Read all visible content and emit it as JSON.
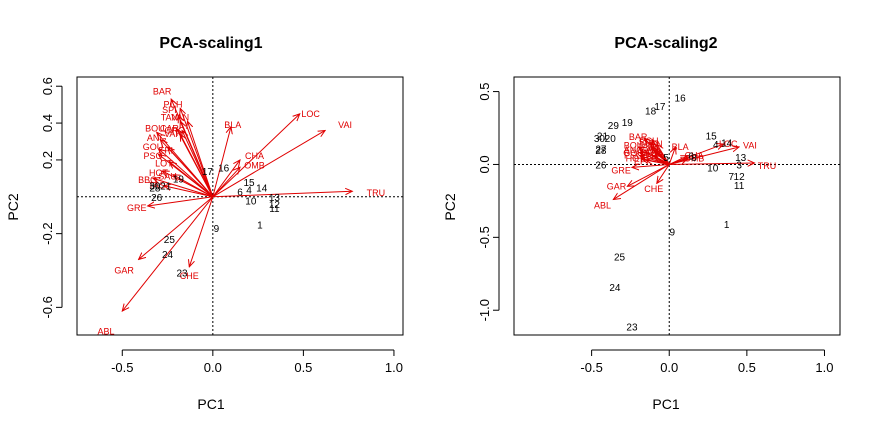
{
  "colors": {
    "arrow": "#e00000",
    "site": "#000000",
    "background": "#ffffff"
  },
  "chart_data": [
    {
      "type": "scatter",
      "title": "PCA-scaling1",
      "xlabel": "PC1",
      "ylabel": "PC2",
      "xlim": [
        -0.75,
        1.05
      ],
      "ylim": [
        -0.75,
        0.65
      ],
      "xticks": [
        -0.5,
        0.0,
        0.5,
        1.0
      ],
      "xtick_labels": [
        "-0.5",
        "0.0",
        "0.5",
        "1.0"
      ],
      "yticks": [
        -0.6,
        -0.2,
        0.2,
        0.4,
        0.6
      ],
      "ytick_labels": [
        "-0.6",
        "-0.2",
        "0.2",
        "0.4",
        "0.6"
      ],
      "reference_lines": {
        "x": 0,
        "y": 0
      },
      "sites": [
        {
          "label": "1",
          "x": 0.26,
          "y": -0.15
        },
        {
          "label": "9",
          "x": 0.02,
          "y": -0.17
        },
        {
          "label": "10",
          "x": 0.21,
          "y": -0.02
        },
        {
          "label": "11",
          "x": 0.34,
          "y": -0.06
        },
        {
          "label": "12",
          "x": 0.34,
          "y": -0.04
        },
        {
          "label": "13",
          "x": 0.34,
          "y": 0.0
        },
        {
          "label": "14",
          "x": 0.27,
          "y": 0.05
        },
        {
          "label": "15",
          "x": 0.2,
          "y": 0.08
        },
        {
          "label": "16",
          "x": 0.06,
          "y": 0.16
        },
        {
          "label": "17",
          "x": -0.03,
          "y": 0.14
        },
        {
          "label": "6",
          "x": 0.15,
          "y": 0.03
        },
        {
          "label": "4",
          "x": 0.2,
          "y": 0.04
        },
        {
          "label": "23",
          "x": -0.17,
          "y": -0.41
        },
        {
          "label": "24",
          "x": -0.25,
          "y": -0.31
        },
        {
          "label": "25",
          "x": -0.24,
          "y": -0.23
        },
        {
          "label": "26",
          "x": -0.31,
          "y": 0.0
        },
        {
          "label": "28",
          "x": -0.32,
          "y": 0.05
        },
        {
          "label": "30",
          "x": -0.32,
          "y": 0.06
        },
        {
          "label": "21",
          "x": -0.26,
          "y": 0.06
        },
        {
          "label": "19",
          "x": -0.19,
          "y": 0.1
        }
      ],
      "variables": [
        {
          "label": "ABL",
          "x": -0.5,
          "y": -0.62,
          "lx": -0.59,
          "ly": -0.73
        },
        {
          "label": "GAR",
          "x": -0.41,
          "y": -0.34,
          "lx": -0.49,
          "ly": -0.4
        },
        {
          "label": "CHE",
          "x": -0.13,
          "y": -0.38,
          "lx": -0.13,
          "ly": -0.43
        },
        {
          "label": "GRE",
          "x": -0.36,
          "y": -0.05,
          "lx": -0.42,
          "ly": -0.06
        },
        {
          "label": "TRU",
          "x": 0.77,
          "y": 0.03,
          "lx": 0.9,
          "ly": 0.02
        },
        {
          "label": "VAI",
          "x": 0.62,
          "y": 0.36,
          "lx": 0.73,
          "ly": 0.39
        },
        {
          "label": "LOC",
          "x": 0.48,
          "y": 0.45,
          "lx": 0.54,
          "ly": 0.45
        },
        {
          "label": "CHA",
          "x": 0.15,
          "y": 0.2,
          "lx": 0.23,
          "ly": 0.22
        },
        {
          "label": "OMB",
          "x": 0.15,
          "y": 0.16,
          "lx": 0.23,
          "ly": 0.17
        },
        {
          "label": "BLA",
          "x": 0.1,
          "y": 0.38,
          "lx": 0.11,
          "ly": 0.39
        },
        {
          "label": "BAR",
          "x": -0.23,
          "y": 0.53,
          "lx": -0.28,
          "ly": 0.57
        },
        {
          "label": "PCH",
          "x": -0.18,
          "y": 0.48,
          "lx": -0.22,
          "ly": 0.5
        },
        {
          "label": "SPI",
          "x": -0.19,
          "y": 0.44,
          "lx": -0.24,
          "ly": 0.47
        },
        {
          "label": "TAN",
          "x": -0.18,
          "y": 0.41,
          "lx": -0.24,
          "ly": 0.43
        },
        {
          "label": "VAN",
          "x": -0.14,
          "y": 0.41,
          "lx": -0.18,
          "ly": 0.43
        },
        {
          "label": "BOU",
          "x": -0.31,
          "y": 0.35,
          "lx": -0.32,
          "ly": 0.37
        },
        {
          "label": "ANG",
          "x": -0.29,
          "y": 0.31,
          "lx": -0.31,
          "ly": 0.32
        },
        {
          "label": "GOU",
          "x": -0.3,
          "y": 0.26,
          "lx": -0.33,
          "ly": 0.27
        },
        {
          "label": "PSO",
          "x": -0.3,
          "y": 0.23,
          "lx": -0.33,
          "ly": 0.22
        },
        {
          "label": "HOT",
          "x": -0.28,
          "y": 0.14,
          "lx": -0.3,
          "ly": 0.13
        },
        {
          "label": "BBO",
          "x": -0.33,
          "y": 0.1,
          "lx": -0.36,
          "ly": 0.09
        },
        {
          "label": "CAR",
          "x": -0.2,
          "y": 0.37,
          "lx": -0.24,
          "ly": 0.37
        },
        {
          "label": "GRO",
          "x": -0.17,
          "y": 0.36,
          "lx": -0.21,
          "ly": 0.36
        },
        {
          "label": "VAR",
          "x": -0.18,
          "y": 0.34,
          "lx": -0.22,
          "ly": 0.34
        },
        {
          "label": "EPI",
          "x": -0.25,
          "y": 0.27,
          "lx": -0.26,
          "ly": 0.25
        },
        {
          "label": "LOT",
          "x": -0.24,
          "y": 0.19,
          "lx": -0.27,
          "ly": 0.18
        },
        {
          "label": "SAU",
          "x": -0.22,
          "y": 0.12,
          "lx": -0.25,
          "ly": 0.11
        },
        {
          "label": "TAS",
          "x": -0.27,
          "y": 0.06,
          "lx": -0.31,
          "ly": 0.06
        }
      ]
    },
    {
      "type": "scatter",
      "title": "PCA-scaling2",
      "xlabel": "PC1",
      "ylabel": "PC2",
      "xlim": [
        -1.0,
        1.1
      ],
      "ylim": [
        -1.17,
        0.6
      ],
      "xticks": [
        -0.5,
        0.0,
        0.5,
        1.0
      ],
      "xtick_labels": [
        "-0.5",
        "0.0",
        "0.5",
        "1.0"
      ],
      "yticks": [
        -1.0,
        -0.5,
        0.0,
        0.5
      ],
      "ytick_labels": [
        "-1.0",
        "-0.5",
        "0.0",
        "0.5"
      ],
      "reference_lines": {
        "x": 0,
        "y": 0
      },
      "sites": [
        {
          "label": "16",
          "x": 0.07,
          "y": 0.46
        },
        {
          "label": "17",
          "x": -0.06,
          "y": 0.4
        },
        {
          "label": "18",
          "x": -0.12,
          "y": 0.37
        },
        {
          "label": "19",
          "x": -0.27,
          "y": 0.29
        },
        {
          "label": "29",
          "x": -0.36,
          "y": 0.27
        },
        {
          "label": "30",
          "x": -0.45,
          "y": 0.18
        },
        {
          "label": "20",
          "x": -0.38,
          "y": 0.18
        },
        {
          "label": "21",
          "x": -0.43,
          "y": 0.2
        },
        {
          "label": "27",
          "x": -0.44,
          "y": 0.11
        },
        {
          "label": "28",
          "x": -0.44,
          "y": 0.1
        },
        {
          "label": "26",
          "x": -0.44,
          "y": 0.0
        },
        {
          "label": "15",
          "x": 0.27,
          "y": 0.2
        },
        {
          "label": "4",
          "x": 0.3,
          "y": 0.14
        },
        {
          "label": "14",
          "x": 0.37,
          "y": 0.15
        },
        {
          "label": "13",
          "x": 0.46,
          "y": 0.05
        },
        {
          "label": "3",
          "x": 0.45,
          "y": 0.0
        },
        {
          "label": "10",
          "x": 0.28,
          "y": -0.02
        },
        {
          "label": "7",
          "x": 0.4,
          "y": -0.08
        },
        {
          "label": "12",
          "x": 0.45,
          "y": -0.08
        },
        {
          "label": "11",
          "x": 0.45,
          "y": -0.14
        },
        {
          "label": "5",
          "x": -0.02,
          "y": 0.05
        },
        {
          "label": "8",
          "x": 0.16,
          "y": 0.05
        },
        {
          "label": "6",
          "x": 0.14,
          "y": 0.06
        },
        {
          "label": "1",
          "x": 0.37,
          "y": -0.41
        },
        {
          "label": "9",
          "x": 0.02,
          "y": -0.46
        },
        {
          "label": "25",
          "x": -0.32,
          "y": -0.63
        },
        {
          "label": "24",
          "x": -0.35,
          "y": -0.84
        },
        {
          "label": "23",
          "x": -0.24,
          "y": -1.11
        }
      ],
      "variables": [
        {
          "label": "ABL",
          "x": -0.36,
          "y": -0.24,
          "lx": -0.43,
          "ly": -0.28
        },
        {
          "label": "GAR",
          "x": -0.27,
          "y": -0.15,
          "lx": -0.34,
          "ly": -0.15
        },
        {
          "label": "CHE",
          "x": -0.08,
          "y": -0.13,
          "lx": -0.1,
          "ly": -0.17
        },
        {
          "label": "GRE",
          "x": -0.24,
          "y": -0.02,
          "lx": -0.31,
          "ly": -0.04
        },
        {
          "label": "TRU",
          "x": 0.55,
          "y": 0.01,
          "lx": 0.63,
          "ly": -0.01
        },
        {
          "label": "VAI",
          "x": 0.45,
          "y": 0.12,
          "lx": 0.52,
          "ly": 0.13
        },
        {
          "label": "LOC",
          "x": 0.35,
          "y": 0.14,
          "lx": 0.38,
          "ly": 0.14
        },
        {
          "label": "BLA",
          "x": 0.04,
          "y": 0.12,
          "lx": 0.07,
          "ly": 0.12
        },
        {
          "label": "CHA",
          "x": 0.12,
          "y": 0.06,
          "lx": 0.16,
          "ly": 0.06
        },
        {
          "label": "OMB",
          "x": 0.12,
          "y": 0.04,
          "lx": 0.16,
          "ly": 0.04
        },
        {
          "label": "BAR",
          "x": -0.16,
          "y": 0.18,
          "lx": -0.2,
          "ly": 0.19
        },
        {
          "label": "PCH",
          "x": -0.11,
          "y": 0.17,
          "lx": -0.13,
          "ly": 0.16
        },
        {
          "label": "SPI",
          "x": -0.12,
          "y": 0.15,
          "lx": -0.15,
          "ly": 0.15
        },
        {
          "label": "BOU",
          "x": -0.2,
          "y": 0.12,
          "lx": -0.23,
          "ly": 0.13
        },
        {
          "label": "ANG",
          "x": -0.19,
          "y": 0.1,
          "lx": -0.23,
          "ly": 0.1
        },
        {
          "label": "GOU",
          "x": -0.19,
          "y": 0.08,
          "lx": -0.23,
          "ly": 0.08
        },
        {
          "label": "PSO",
          "x": -0.19,
          "y": 0.06,
          "lx": -0.23,
          "ly": 0.06
        },
        {
          "label": "HOT",
          "x": -0.18,
          "y": 0.04,
          "lx": -0.22,
          "ly": 0.04
        },
        {
          "label": "VAN",
          "x": -0.08,
          "y": 0.14,
          "lx": -0.1,
          "ly": 0.14
        },
        {
          "label": "TAN",
          "x": -0.12,
          "y": 0.12,
          "lx": -0.15,
          "ly": 0.12
        },
        {
          "label": "CAR",
          "x": -0.1,
          "y": 0.1,
          "lx": -0.13,
          "ly": 0.1
        },
        {
          "label": "GRO",
          "x": -0.09,
          "y": 0.08,
          "lx": -0.12,
          "ly": 0.08
        },
        {
          "label": "VAR",
          "x": -0.1,
          "y": 0.06,
          "lx": -0.13,
          "ly": 0.06
        },
        {
          "label": "EPI",
          "x": -0.15,
          "y": 0.03,
          "lx": -0.18,
          "ly": 0.02
        }
      ]
    }
  ]
}
